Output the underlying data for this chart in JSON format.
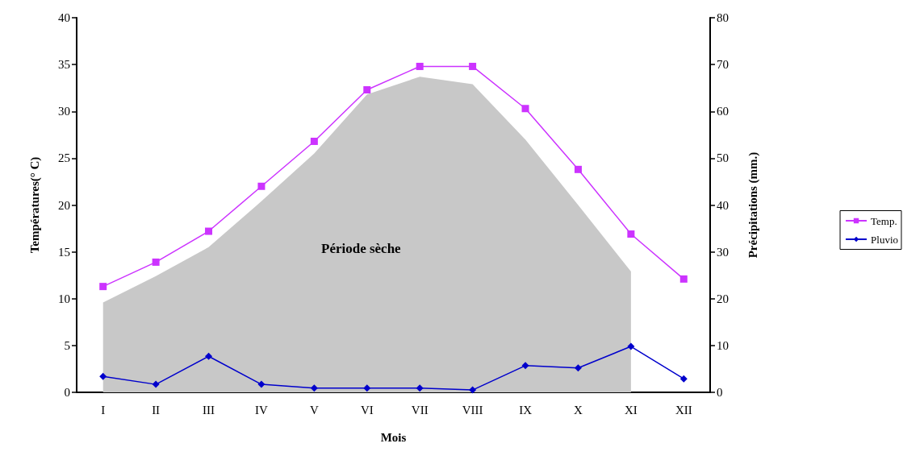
{
  "chart_data": {
    "type": "line",
    "xlabel": "Mois",
    "ylabel": "Températures(° C)",
    "y2label": "Précipitations (mm.)",
    "categories": [
      "I",
      "II",
      "III",
      "IV",
      "V",
      "VI",
      "VII",
      "VIII",
      "IX",
      "X",
      "XI",
      "XII"
    ],
    "series": [
      {
        "type": "area",
        "color": "#c8c8c8",
        "values": [
          9.6,
          12.4,
          15.5,
          20.4,
          25.5,
          31.8,
          33.7,
          32.9,
          27,
          20,
          12.9,
          null
        ]
      },
      {
        "name": "Temp.",
        "color": "#cc33ff",
        "marker": "square",
        "values": [
          11.3,
          13.9,
          17.2,
          22.0,
          26.8,
          32.3,
          34.8,
          34.8,
          30.3,
          23.8,
          16.9,
          12.1
        ]
      },
      {
        "name": "Pluvio",
        "color": "#0000cc",
        "marker": "diamond",
        "axis": "y2",
        "values": [
          3.4,
          1.7,
          7.7,
          1.7,
          0.9,
          0.9,
          0.9,
          0.5,
          5.7,
          5.2,
          9.8,
          2.9
        ]
      }
    ],
    "ylim": [
      0,
      40
    ],
    "yticks": [
      0,
      5,
      10,
      15,
      20,
      25,
      30,
      35,
      40
    ],
    "y2lim": [
      0,
      80
    ],
    "y2ticks": [
      0,
      10,
      20,
      30,
      40,
      50,
      60,
      70,
      80
    ],
    "annotations": [
      "Période sèche"
    ],
    "legend": "right",
    "grid": false
  }
}
